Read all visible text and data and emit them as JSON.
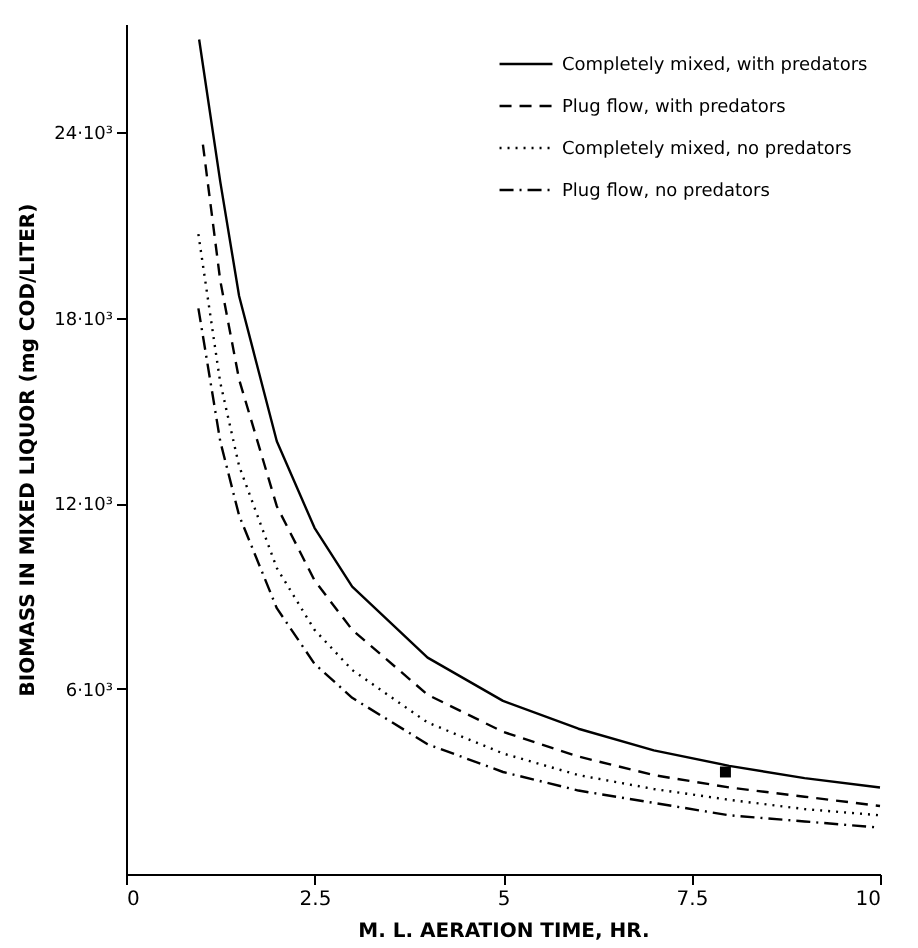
{
  "chart_data": {
    "type": "line",
    "xlabel": "M. L. AERATION TIME, HR.",
    "ylabel": "BIOMASS IN MIXED LIQUOR (mg COD/LITER)",
    "xlim": [
      0,
      10
    ],
    "ylim": [
      0,
      27500
    ],
    "xticks": [
      0,
      2.5,
      5,
      7.5,
      10
    ],
    "yticks": [
      {
        "value": 6000,
        "label": "6·10³"
      },
      {
        "value": 12000,
        "label": "12·10³"
      },
      {
        "value": 18000,
        "label": "18·10³"
      },
      {
        "value": 24000,
        "label": "24·10³"
      }
    ],
    "grid": false,
    "legend": "top right",
    "series": [
      {
        "name": "Completely mixed, with predators",
        "color": "#000000",
        "line_style": "solid",
        "x": [
          0.97,
          1.25,
          1.5,
          2,
          2.5,
          3,
          4,
          5,
          6,
          7,
          8,
          9,
          10
        ],
        "values": [
          27000,
          22400,
          18700,
          14000,
          11200,
          9300,
          7000,
          5600,
          4700,
          4000,
          3500,
          3100,
          2800
        ]
      },
      {
        "name": "Plug flow, with predators",
        "color": "#000000",
        "line_style": "dashed",
        "x": [
          1.02,
          1.25,
          1.5,
          2,
          2.5,
          3,
          4,
          5,
          6,
          7,
          8,
          9,
          10
        ],
        "values": [
          23600,
          19200,
          16000,
          11900,
          9500,
          7900,
          5800,
          4600,
          3800,
          3200,
          2800,
          2500,
          2200
        ]
      },
      {
        "name": "Completely mixed, no predators",
        "color": "#000000",
        "line_style": "dotted",
        "x": [
          0.96,
          1.25,
          1.5,
          2,
          2.5,
          3,
          4,
          5,
          6,
          7,
          8,
          9,
          10
        ],
        "values": [
          20700,
          15900,
          13200,
          9900,
          7900,
          6600,
          4900,
          3900,
          3200,
          2750,
          2400,
          2100,
          1900
        ]
      },
      {
        "name": "Plug flow, no predators",
        "color": "#000000",
        "line_style": "dashdot",
        "x": [
          0.96,
          1.25,
          1.5,
          2,
          2.5,
          3,
          4,
          5,
          6,
          7,
          8,
          9,
          10
        ],
        "values": [
          18300,
          14000,
          11600,
          8600,
          6800,
          5700,
          4200,
          3300,
          2700,
          2300,
          1900,
          1700,
          1500
        ]
      },
      {
        "type": "scatter",
        "marker": "square",
        "color": "#000000",
        "x": [
          7.95
        ],
        "values": [
          3300
        ]
      }
    ]
  }
}
